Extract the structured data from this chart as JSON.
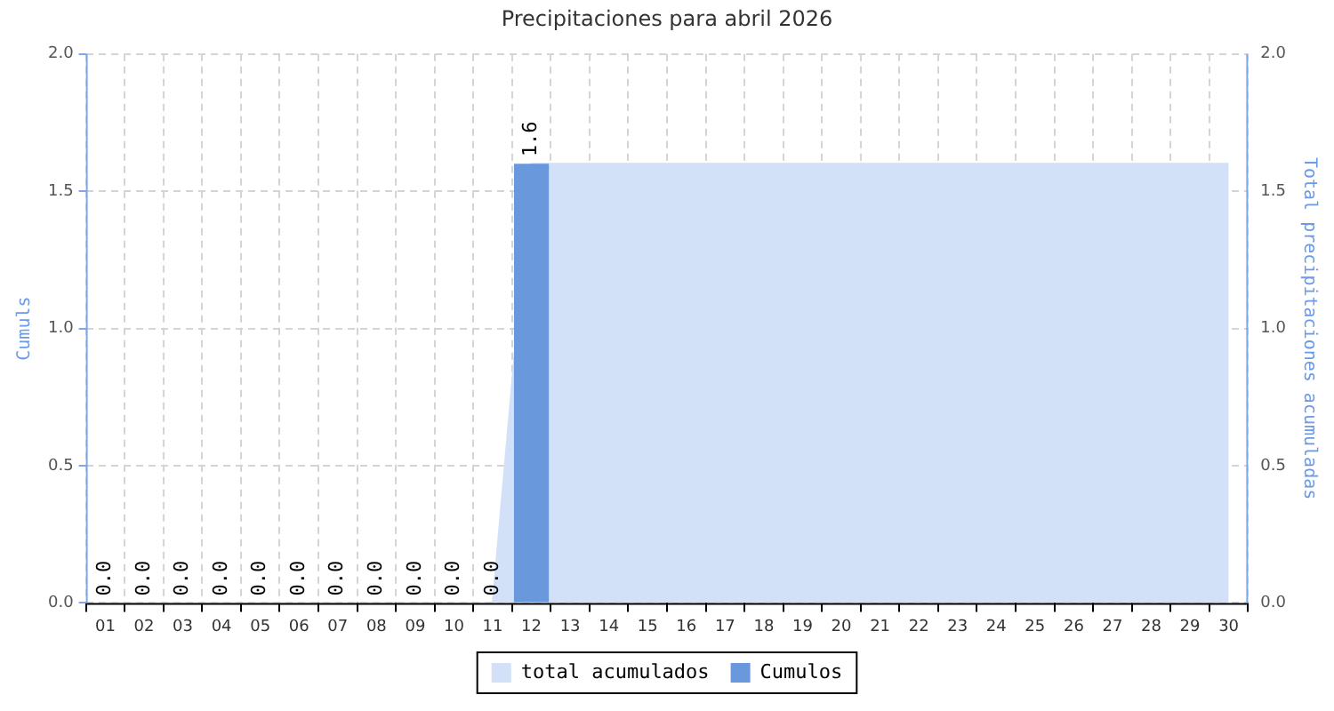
{
  "chart_data": {
    "type": "bar",
    "title": "Precipitaciones para abril 2026",
    "ylabel": "Cumuls",
    "y2label": "Total precipitaciones acumuladas",
    "categories": [
      "01",
      "02",
      "03",
      "04",
      "05",
      "06",
      "07",
      "08",
      "09",
      "10",
      "11",
      "12",
      "13",
      "14",
      "15",
      "16",
      "17",
      "18",
      "19",
      "20",
      "21",
      "22",
      "23",
      "24",
      "25",
      "26",
      "27",
      "28",
      "29",
      "30"
    ],
    "series": [
      {
        "name": "total acumulados",
        "type": "area",
        "axis": "y2",
        "color": "#d2e0f8",
        "values": [
          0,
          0,
          0,
          0,
          0,
          0,
          0,
          0,
          0,
          0,
          0,
          1.6,
          1.6,
          1.6,
          1.6,
          1.6,
          1.6,
          1.6,
          1.6,
          1.6,
          1.6,
          1.6,
          1.6,
          1.6,
          1.6,
          1.6,
          1.6,
          1.6,
          1.6,
          1.6
        ]
      },
      {
        "name": "Cumulos",
        "color": "#6a98dc",
        "values": [
          0,
          0,
          0,
          0,
          0,
          0,
          0,
          0,
          0,
          0,
          0,
          1.6,
          null,
          null,
          null,
          null,
          null,
          null,
          null,
          null,
          null,
          null,
          null,
          null,
          null,
          null,
          null,
          null,
          null,
          null
        ],
        "value_labels": [
          "0.0",
          "0.0",
          "0.0",
          "0.0",
          "0.0",
          "0.0",
          "0.0",
          "0.0",
          "0.0",
          "0.0",
          "0.0",
          "1.6",
          null,
          null,
          null,
          null,
          null,
          null,
          null,
          null,
          null,
          null,
          null,
          null,
          null,
          null,
          null,
          null,
          null,
          null
        ]
      }
    ],
    "ylim": [
      0,
      2
    ],
    "yticks": [
      {
        "value": 0,
        "label": "0.0"
      },
      {
        "value": 0.5,
        "label": "0.5"
      },
      {
        "value": 1,
        "label": "1.0"
      },
      {
        "value": 1.5,
        "label": "1.5"
      },
      {
        "value": 2,
        "label": "2.0"
      }
    ],
    "y2lim": [
      0,
      2
    ],
    "y2ticks": [
      {
        "value": 0,
        "label": "0.0"
      },
      {
        "value": 0.5,
        "label": "0.5"
      },
      {
        "value": 1,
        "label": "1.0"
      },
      {
        "value": 1.5,
        "label": "1.5"
      },
      {
        "value": 2,
        "label": "2.0"
      }
    ],
    "grid": true,
    "legend": "bottom",
    "line_style": "dashed"
  }
}
